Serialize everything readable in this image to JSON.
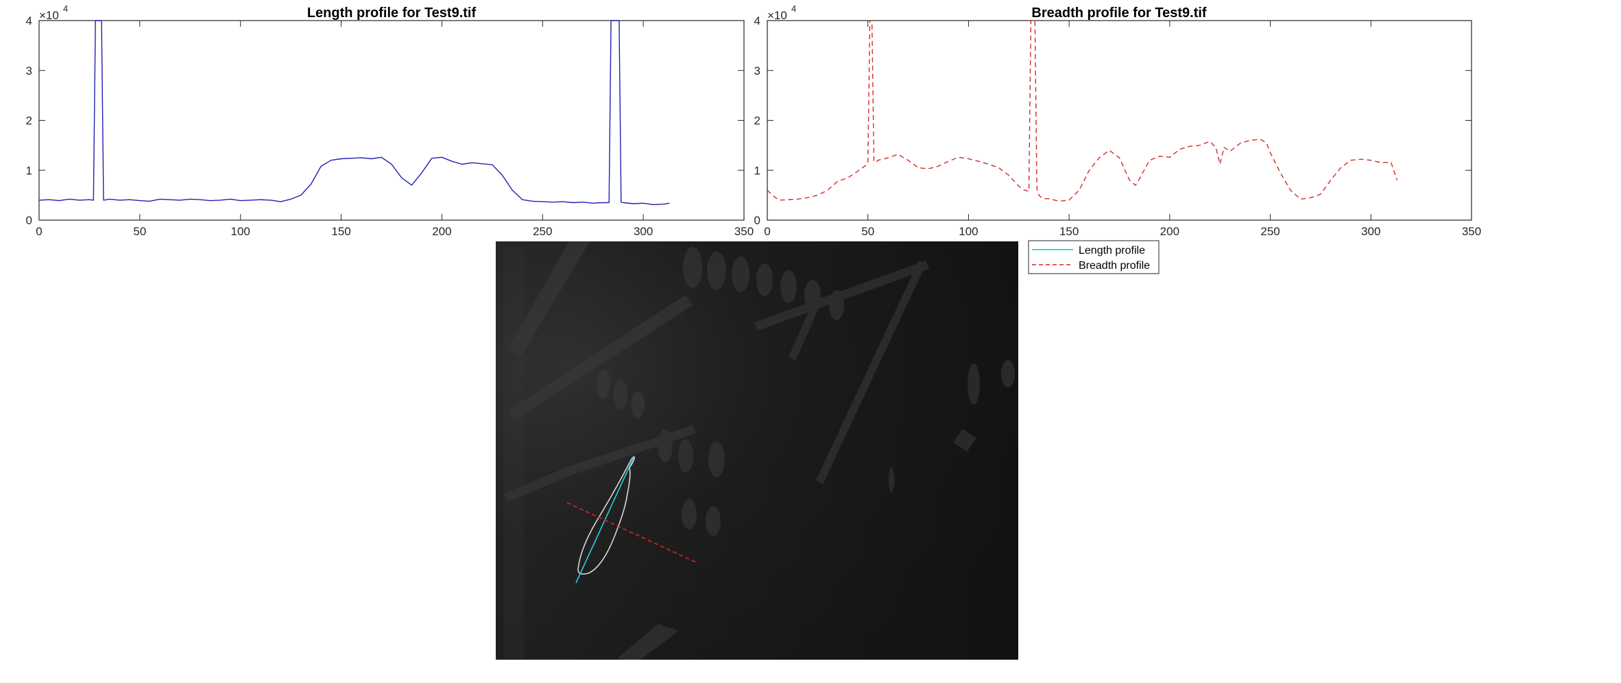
{
  "figure": {
    "legend": {
      "entries": [
        {
          "label": "Length profile",
          "color": "#00c8d6",
          "style": "solid"
        },
        {
          "label": "Breadth profile",
          "color": "#d62728",
          "style": "dashed"
        }
      ]
    },
    "image_panel": {
      "overlay_length_color": "#26d0dc",
      "overlay_breadth_color": "#d62728",
      "outline_color": "#d8d8d8"
    }
  },
  "chart_data": [
    {
      "type": "line",
      "title": "Length profile for Test9.tif",
      "xlabel": "",
      "ylabel": "",
      "xlim": [
        0,
        350
      ],
      "ylim": [
        0,
        40000
      ],
      "xticks": [
        0,
        50,
        100,
        150,
        200,
        250,
        300,
        350
      ],
      "yticks": [
        0,
        1,
        2,
        3,
        4
      ],
      "y_exponent_label": "×10",
      "y_exponent_power": "4",
      "series": [
        {
          "color": "#1f1fb4",
          "style": "solid",
          "x": [
            0,
            5,
            10,
            15,
            20,
            25,
            27,
            28,
            29,
            30,
            31,
            32,
            35,
            40,
            45,
            50,
            55,
            60,
            65,
            70,
            75,
            80,
            85,
            90,
            95,
            100,
            105,
            110,
            115,
            120,
            125,
            130,
            135,
            140,
            145,
            150,
            155,
            160,
            165,
            170,
            175,
            180,
            185,
            190,
            195,
            200,
            205,
            210,
            215,
            220,
            225,
            230,
            235,
            240,
            245,
            250,
            255,
            260,
            265,
            270,
            275,
            280,
            283,
            284,
            285,
            286,
            287,
            288,
            289,
            290,
            295,
            300,
            305,
            310,
            313
          ],
          "y": [
            4000,
            4100,
            3900,
            4200,
            4000,
            4100,
            4000,
            40000,
            40000,
            40000,
            40000,
            4000,
            4200,
            4000,
            4100,
            3900,
            3800,
            4200,
            4100,
            4000,
            4200,
            4100,
            3900,
            4000,
            4200,
            3900,
            4000,
            4100,
            4000,
            3700,
            4200,
            5000,
            7200,
            10800,
            12000,
            12300,
            12400,
            12500,
            12300,
            12600,
            11200,
            8500,
            7000,
            9500,
            12400,
            12600,
            11800,
            11200,
            11500,
            11300,
            11100,
            9000,
            6000,
            4100,
            3800,
            3700,
            3600,
            3700,
            3500,
            3600,
            3400,
            3500,
            3500,
            40000,
            40000,
            40000,
            40000,
            40000,
            3600,
            3500,
            3300,
            3400,
            3100,
            3200,
            3400
          ]
        }
      ]
    },
    {
      "type": "line",
      "title": "Breadth profile for Test9.tif",
      "xlabel": "",
      "ylabel": "",
      "xlim": [
        0,
        350
      ],
      "ylim": [
        0,
        40000
      ],
      "xticks": [
        0,
        50,
        100,
        150,
        200,
        250,
        300,
        350
      ],
      "yticks": [
        0,
        1,
        2,
        3,
        4
      ],
      "y_exponent_label": "×10",
      "y_exponent_power": "4",
      "series": [
        {
          "color": "#d62728",
          "style": "dashed",
          "x": [
            0,
            3,
            6,
            10,
            15,
            20,
            25,
            30,
            35,
            40,
            45,
            49,
            50,
            51,
            52,
            53,
            54,
            55,
            60,
            65,
            70,
            75,
            80,
            85,
            90,
            95,
            100,
            105,
            110,
            115,
            120,
            125,
            128,
            130,
            131,
            132,
            133,
            134,
            135,
            136,
            138,
            140,
            145,
            150,
            155,
            160,
            165,
            170,
            175,
            180,
            183,
            185,
            190,
            195,
            200,
            205,
            210,
            215,
            220,
            223,
            225,
            227,
            230,
            235,
            240,
            245,
            248,
            250,
            255,
            260,
            265,
            270,
            275,
            280,
            285,
            290,
            295,
            300,
            305,
            310,
            313
          ],
          "y": [
            6000,
            4800,
            4000,
            4100,
            4200,
            4500,
            5000,
            6000,
            7800,
            8500,
            9800,
            11000,
            11400,
            40000,
            40000,
            11800,
            11600,
            12000,
            12500,
            13200,
            12000,
            10500,
            10300,
            10800,
            11800,
            12600,
            12300,
            11800,
            11200,
            10500,
            9000,
            6800,
            6000,
            5800,
            40000,
            40000,
            40000,
            6200,
            5000,
            4600,
            4300,
            4300,
            3800,
            4000,
            6000,
            10000,
            12500,
            14000,
            12500,
            8000,
            7000,
            8300,
            12000,
            12800,
            12600,
            14200,
            14800,
            15000,
            15800,
            14500,
            11200,
            14600,
            13800,
            15400,
            16000,
            16200,
            15500,
            13500,
            9500,
            6000,
            4200,
            4500,
            5200,
            8000,
            10500,
            12000,
            12200,
            12000,
            11500,
            11600,
            8000
          ]
        }
      ]
    }
  ]
}
